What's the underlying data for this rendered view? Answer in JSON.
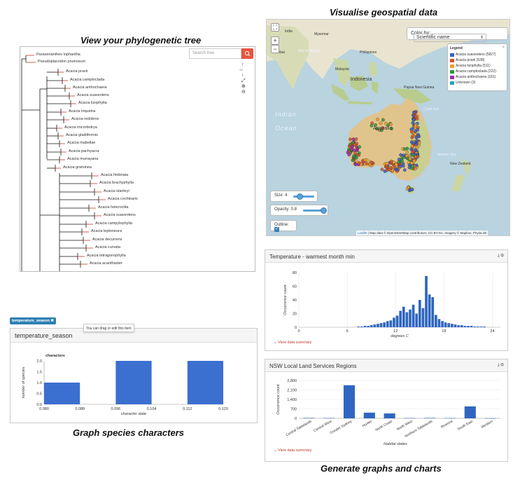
{
  "captions": {
    "tree": "View your phylogenetic tree",
    "map": "Visualise geospatial data",
    "characters": "Graph species characters",
    "charts": "Generate graphs and charts"
  },
  "tree": {
    "search_placeholder": "Search tree",
    "labels": [
      "Paraserianthes lophantha",
      "Pseudoplacodon pruinosum",
      "Acacia pravii",
      "Acacia camptoclada",
      "Acacia anthochaera",
      "Acacia suaveolens",
      "Acacia lizophylla",
      "Acacia triquetra",
      "Acacia redolens",
      "Acacia microbotrya",
      "Acacia gladiiformis",
      "Acacia mabellae",
      "Acacia pachyacra",
      "Acacia murrayana",
      "Acacia graminea",
      "Acacia fimbriata",
      "Acacia brachyphylla",
      "Acacia stanleyi",
      "Acacia cochlearis",
      "Acacia heteroclita",
      "Acacia suaveolens",
      "Acacia campylophylla",
      "Acacia leptoneura",
      "Acacia decurrens",
      "Acacia curvata",
      "Acacia tetragonophylla",
      "Acacia acanthaster"
    ]
  },
  "map": {
    "color_by_label": "Color by:",
    "color_by_value": "Scientific name",
    "legend_title": "Legend",
    "legend": [
      {
        "label": "Acacia suaveolens (5827)",
        "color": "#3a5fc8"
      },
      {
        "label": "Acacia pravii (538)",
        "color": "#d9532b"
      },
      {
        "label": "Acacia lizophylla (511)",
        "color": "#f0a030"
      },
      {
        "label": "Acacia camptoclada (222)",
        "color": "#2e9a3c"
      },
      {
        "label": "Acacia anthochaera (181)",
        "color": "#9b2fa8"
      },
      {
        "label": "Unknown (3)",
        "color": "#2aa0c0"
      }
    ],
    "size_label": "Size: 4",
    "opacity_label": "Opacity: 0.8",
    "outline_label": "Outline:",
    "attribution_leaflet": "Leaflet",
    "attribution_rest": " | Map data © OpenStreetMap contributors, CC-BY-SA, Imagery © Mapbox, PhyloLink",
    "places": {
      "india": "India",
      "mumbai": "Mumbai",
      "bengal": "Bay of Bengal",
      "myanmar": "Myanmar",
      "philippines": "Philippines",
      "malaysia": "Malaysia",
      "indonesia": "Indonesia",
      "png": "Papua New Guinea",
      "australia": "Australia",
      "coral": "Coral Sea",
      "tasman": "Tasman Sea",
      "nz": "New Zealand",
      "indian": "Indian",
      "ocean": "Ocean"
    }
  },
  "temperature_panel": {
    "title": "Temperature - warmest month min",
    "ylabel": "Occurrence count",
    "xlabel": "degrees C",
    "summary": "View data summary"
  },
  "nsw_panel": {
    "title": "NSW Local Land Services Regions",
    "ylabel": "Occurrence count",
    "xlabel": "Habitat states",
    "summary": "View data summary"
  },
  "season_panel": {
    "badge": "temperature_season",
    "tooltip": "You can drag or edit this item",
    "title": "temperature_season",
    "legend": "characters",
    "ylabel": "number of species",
    "xlabel": "character state"
  },
  "chart_data": [
    {
      "type": "bar",
      "id": "temperature",
      "title": "Temperature - warmest month min",
      "xlabel": "degrees C",
      "ylabel": "Occurrence count",
      "xlim": [
        0,
        25
      ],
      "ylim": [
        0,
        80
      ],
      "xticks": [
        0,
        6,
        12,
        18,
        24
      ],
      "yticks": [
        0,
        20,
        40,
        60,
        80
      ],
      "x": [
        7.4,
        7.8,
        8.2,
        8.6,
        9.0,
        9.4,
        9.8,
        10.2,
        10.6,
        11.0,
        11.4,
        11.8,
        12.2,
        12.6,
        13.0,
        13.4,
        13.8,
        14.2,
        14.6,
        15.0,
        15.4,
        15.8,
        16.2,
        16.6,
        17.0,
        17.4,
        17.8,
        18.2,
        18.6,
        19.0,
        19.4,
        19.8,
        20.2,
        20.6,
        21.0,
        21.4,
        21.8,
        22.2,
        22.6,
        23.0
      ],
      "values": [
        1,
        1,
        2,
        2,
        3,
        4,
        5,
        6,
        7,
        9,
        10,
        14,
        17,
        24,
        30,
        22,
        26,
        33,
        20,
        40,
        28,
        75,
        48,
        44,
        18,
        12,
        9,
        7,
        6,
        5,
        4,
        3,
        3,
        2,
        2,
        2,
        1,
        1,
        1,
        1
      ]
    },
    {
      "type": "bar",
      "id": "nsw-regions",
      "title": "NSW Local Land Services Regions",
      "xlabel": "Habitat states",
      "ylabel": "Occurrence count",
      "ylim": [
        0,
        2800
      ],
      "yticks": [
        0,
        700,
        1400,
        2100,
        2800
      ],
      "categories": [
        "Central Tablelands",
        "Central West",
        "Greater Sydney",
        "Hunter",
        "North Coast",
        "North West",
        "Northern Tablelands",
        "Riverina",
        "South East",
        "Western"
      ],
      "values": [
        30,
        20,
        2450,
        420,
        360,
        20,
        30,
        20,
        880,
        10
      ]
    },
    {
      "type": "bar",
      "id": "temperature-season",
      "title": "temperature_season",
      "xlabel": "character state",
      "ylabel": "number of species",
      "legend": "characters",
      "ylim": [
        0,
        2.0
      ],
      "yticks": [
        0,
        0.5,
        1.0,
        1.5,
        2.0
      ],
      "xticks": [
        "0.080",
        "0.088",
        "0.096",
        "0.104",
        "0.112",
        "0.120"
      ],
      "bins": [
        [
          0.08,
          0.088
        ],
        [
          0.096,
          0.104
        ],
        [
          0.112,
          0.12
        ]
      ],
      "values": [
        1,
        2,
        2
      ]
    }
  ]
}
